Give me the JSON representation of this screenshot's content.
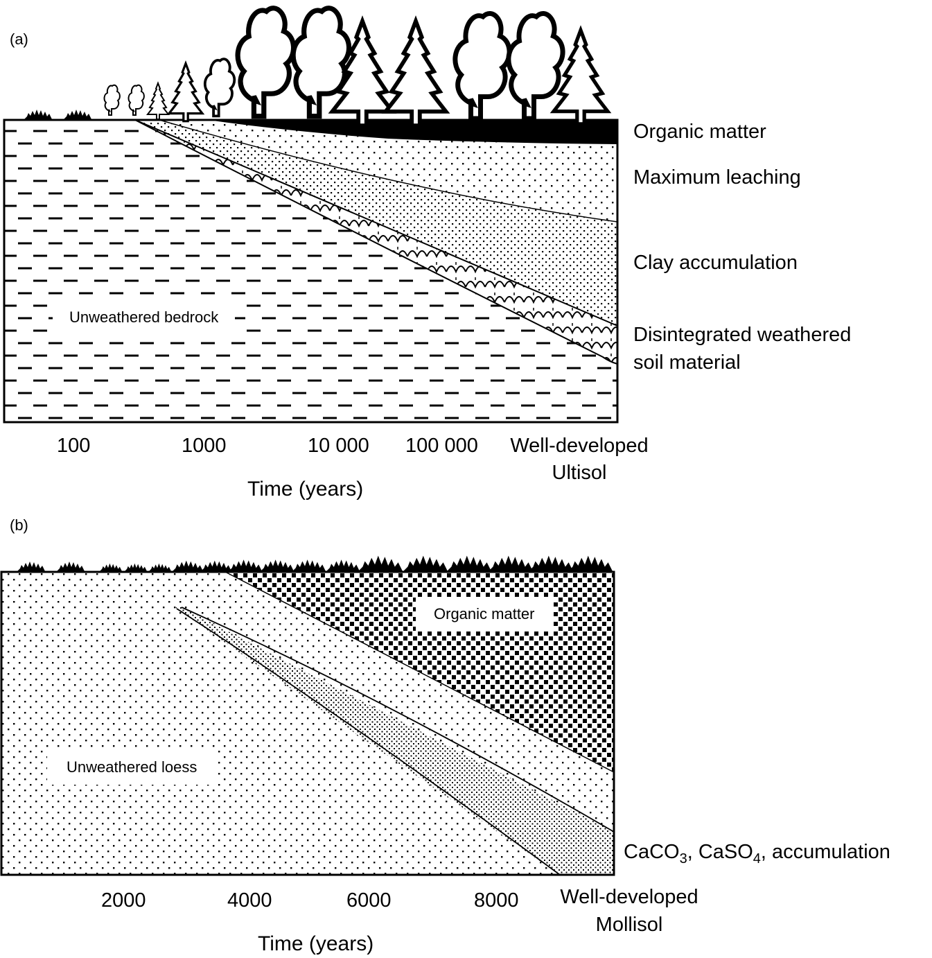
{
  "panel_a": {
    "tag": "(a)",
    "region_label": "Unweathered bedrock",
    "layers": [
      "Organic matter",
      "Maximum leaching",
      "Clay accumulation",
      "Disintegrated weathered",
      "soil material"
    ],
    "ticks": [
      "100",
      "1000",
      "10 000",
      "100 000"
    ],
    "end_label": [
      "Well-developed",
      "Ultisol"
    ],
    "axis_title": "Time (years)"
  },
  "panel_b": {
    "tag": "(b)",
    "region_label": "Unweathered loess",
    "organic_label": "Organic matter",
    "layer": {
      "prefix": "CaCO",
      "sub1": "3",
      "mid": ", CaSO",
      "sub2": "4",
      "suffix": ", accumulation"
    },
    "ticks": [
      "2000",
      "4000",
      "6000",
      "8000"
    ],
    "end_label": [
      "Well-developed",
      "Mollisol"
    ],
    "axis_title": "Time (years)"
  },
  "icons": [
    "tree-icon",
    "grass-tuft-icon"
  ],
  "colors": {
    "ink": "#000000",
    "paper": "#ffffff"
  }
}
